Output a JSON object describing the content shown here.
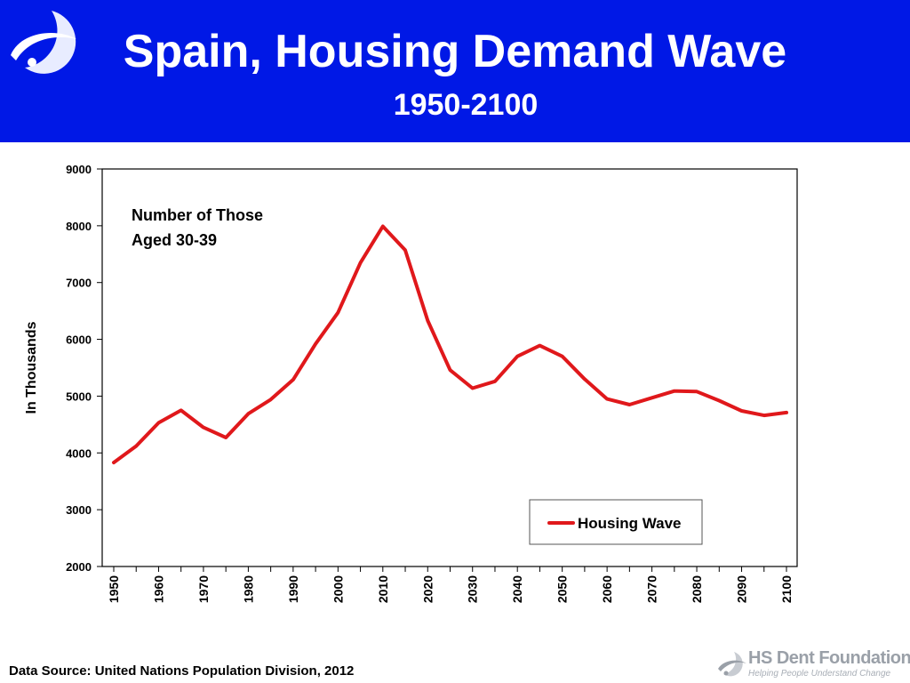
{
  "header": {
    "title": "Spain, Housing Demand Wave",
    "subtitle": "1950-2100",
    "background_color": "#0018e6",
    "logo_icon": "hs-dent-swoosh-icon"
  },
  "footer": {
    "source": "Data Source: United Nations Population Division, 2012",
    "brand_name": "HS Dent Foundation",
    "brand_tagline": "Helping People Understand Change",
    "brand_icon": "hs-dent-swoosh-icon"
  },
  "chart_data": {
    "type": "line",
    "title": "",
    "xlabel": "",
    "ylabel": "In Thousands",
    "annotation": "Number of Those\nAged 30-39",
    "ylim": [
      2000,
      9000
    ],
    "yticks": [
      2000,
      3000,
      4000,
      5000,
      6000,
      7000,
      8000,
      9000
    ],
    "xlim": [
      1950,
      2100
    ],
    "xticks": [
      1950,
      1960,
      1970,
      1980,
      1990,
      2000,
      2010,
      2020,
      2030,
      2040,
      2050,
      2060,
      2070,
      2080,
      2090,
      2100
    ],
    "grid": false,
    "legend_position": "bottom-right",
    "series": [
      {
        "name": "Housing Wave",
        "color": "#e0181b",
        "x": [
          1950,
          1955,
          1960,
          1965,
          1970,
          1975,
          1980,
          1985,
          1990,
          1995,
          2000,
          2005,
          2010,
          2015,
          2020,
          2025,
          2030,
          2035,
          2040,
          2045,
          2050,
          2055,
          2060,
          2065,
          2070,
          2075,
          2080,
          2085,
          2090,
          2095,
          2100
        ],
        "values": [
          3830,
          4120,
          4530,
          4750,
          4450,
          4270,
          4690,
          4940,
          5290,
          5920,
          6470,
          7350,
          7990,
          7570,
          6330,
          5460,
          5140,
          5260,
          5700,
          5890,
          5700,
          5300,
          4950,
          4850,
          4970,
          5090,
          5080,
          4920,
          4740,
          4660,
          4710
        ]
      }
    ]
  }
}
